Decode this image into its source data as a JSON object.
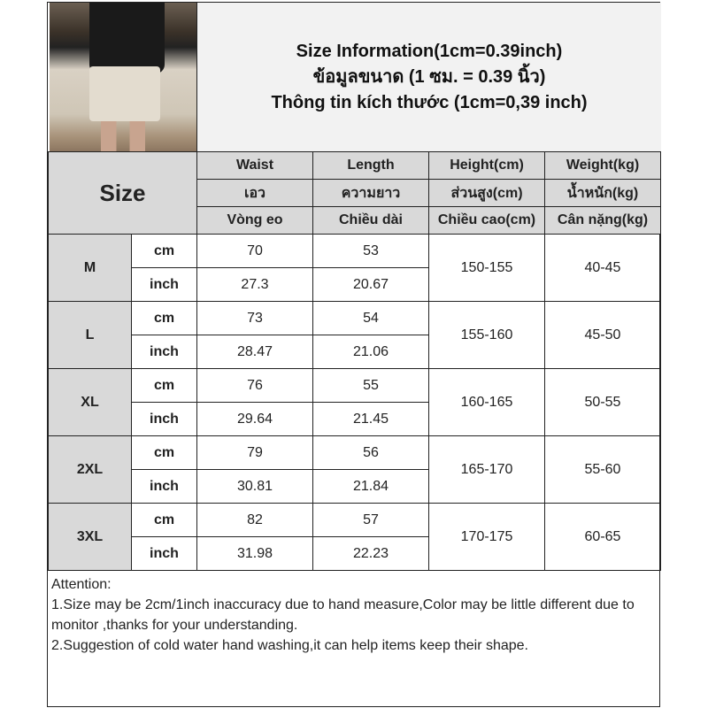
{
  "title": {
    "line1": "Size Information(1cm=0.39inch)",
    "line2": "ข้อมูลขนาด (1 ซม. = 0.39 นิ้ว)",
    "line3": "Thông tin kích thước (1cm=0,39 inch)"
  },
  "header": {
    "size": "Size",
    "columns": [
      {
        "en": "Waist",
        "th": "เอว",
        "vi": "Vòng eo"
      },
      {
        "en": "Length",
        "th": "ความยาว",
        "vi": "Chiều dài"
      },
      {
        "en": "Height(cm)",
        "th": "ส่วนสูง(cm)",
        "vi": "Chiều cao(cm)"
      },
      {
        "en": "Weight(kg)",
        "th": "น้ำหนัก(kg)",
        "vi": "Cân nặng(kg)"
      }
    ]
  },
  "units": {
    "cm": "cm",
    "inch": "inch"
  },
  "rows": [
    {
      "size": "M",
      "waist_cm": "70",
      "length_cm": "53",
      "waist_in": "27.3",
      "length_in": "20.67",
      "height": "150-155",
      "weight": "40-45"
    },
    {
      "size": "L",
      "waist_cm": "73",
      "length_cm": "54",
      "waist_in": "28.47",
      "length_in": "21.06",
      "height": "155-160",
      "weight": "45-50"
    },
    {
      "size": "XL",
      "waist_cm": "76",
      "length_cm": "55",
      "waist_in": "29.64",
      "length_in": "21.45",
      "height": "160-165",
      "weight": "50-55"
    },
    {
      "size": "2XL",
      "waist_cm": "79",
      "length_cm": "56",
      "waist_in": "30.81",
      "length_in": "21.84",
      "height": "165-170",
      "weight": "55-60"
    },
    {
      "size": "3XL",
      "waist_cm": "82",
      "length_cm": "57",
      "waist_in": "31.98",
      "length_in": "22.23",
      "height": "170-175",
      "weight": "60-65"
    }
  ],
  "attention": {
    "heading": "Attention:",
    "note1": "1.Size may be 2cm/1inch inaccuracy due to hand measure,Color may be little different due to monitor ,thanks for your understanding.",
    "note2": "2.Suggestion of cold water hand washing,it can help items keep their shape."
  }
}
